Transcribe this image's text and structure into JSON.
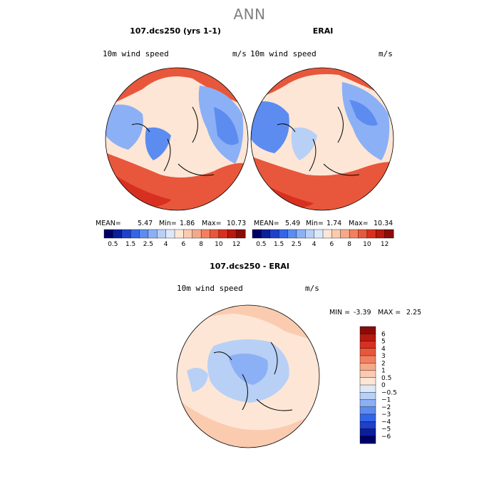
{
  "figure": {
    "title": "ANN"
  },
  "chart_data": [
    {
      "type": "heatmap",
      "title": "107.dcs250 (yrs 1-1)",
      "left_label": "10m wind speed",
      "right_label": "m/s",
      "stats": {
        "mean_label": "MEAN=",
        "mean": "5.47",
        "min_label": "Min=",
        "min": "1.86",
        "max_label": "Max=",
        "max": "10.73"
      },
      "levels": [
        0.5,
        1,
        1.5,
        2,
        2.5,
        3,
        4,
        5,
        6,
        7,
        8,
        9,
        10,
        11,
        12
      ],
      "tick_labels": [
        "0.5",
        "1.5",
        "2.5",
        "4",
        "6",
        "8",
        "10",
        "12"
      ],
      "colors": [
        "#000066",
        "#0a1f99",
        "#1f40cc",
        "#3366e6",
        "#5c8cf0",
        "#8cb0f5",
        "#b8d0f5",
        "#dde8fa",
        "#fde6d6",
        "#fbcbb0",
        "#f7a888",
        "#f28060",
        "#e8573b",
        "#d83020",
        "#b8190f",
        "#8a0c08"
      ]
    },
    {
      "type": "heatmap",
      "title": "ERAI",
      "left_label": "10m wind speed",
      "right_label": "m/s",
      "stats": {
        "mean_label": "MEAN=",
        "mean": "5.49",
        "min_label": "Min=",
        "min": "1.74",
        "max_label": "Max=",
        "max": "10.34"
      },
      "levels": [
        0.5,
        1,
        1.5,
        2,
        2.5,
        3,
        4,
        5,
        6,
        7,
        8,
        9,
        10,
        11,
        12
      ],
      "tick_labels": [
        "0.5",
        "1.5",
        "2.5",
        "4",
        "6",
        "8",
        "10",
        "12"
      ],
      "colors": [
        "#000066",
        "#0a1f99",
        "#1f40cc",
        "#3366e6",
        "#5c8cf0",
        "#8cb0f5",
        "#b8d0f5",
        "#dde8fa",
        "#fde6d6",
        "#fbcbb0",
        "#f7a888",
        "#f28060",
        "#e8573b",
        "#d83020",
        "#b8190f",
        "#8a0c08"
      ]
    },
    {
      "type": "heatmap",
      "title": "107.dcs250 - ERAI",
      "left_label": "10m wind speed",
      "right_label": "m/s",
      "stats": {
        "min_label": "MIN =",
        "min": "-3.39",
        "max_label": "MAX =",
        "max": "2.25"
      },
      "levels": [
        -6,
        -5,
        -4,
        -3,
        -2,
        -1,
        -0.5,
        0,
        0.5,
        1,
        2,
        3,
        4,
        5,
        6
      ],
      "tick_labels": [
        "6",
        "5",
        "4",
        "3",
        "2",
        "1",
        "0.5",
        "0",
        "−0.5",
        "−1",
        "−2",
        "−3",
        "−4",
        "−5",
        "−6"
      ],
      "colors": [
        "#8a0c08",
        "#b8190f",
        "#d83020",
        "#e8573b",
        "#f28060",
        "#f7a888",
        "#fbcbb0",
        "#fde6d6",
        "#dde8fa",
        "#b8d0f5",
        "#8cb0f5",
        "#5c8cf0",
        "#3366e6",
        "#1f40cc",
        "#0a1f99",
        "#000066"
      ]
    }
  ]
}
